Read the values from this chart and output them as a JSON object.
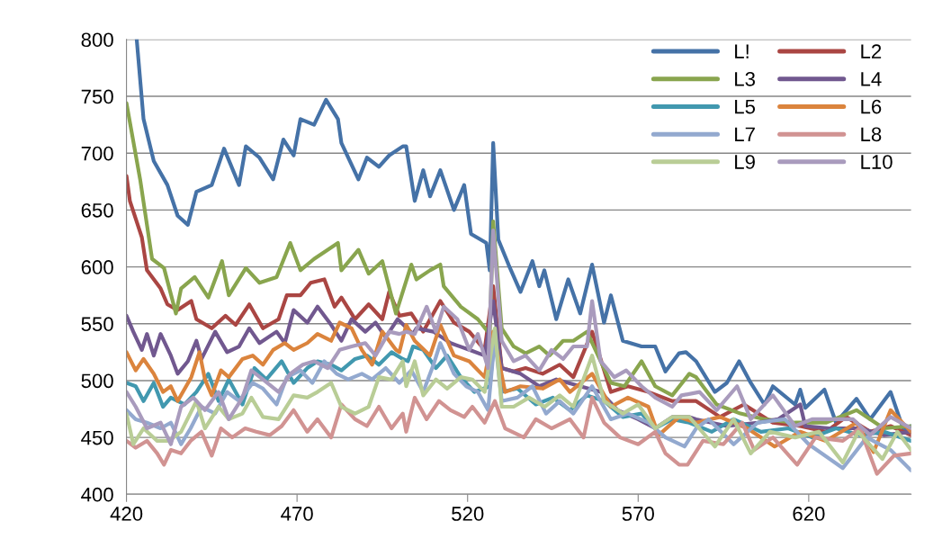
{
  "chart_data": {
    "type": "line",
    "xlim": [
      420,
      650
    ],
    "xticks": [
      420,
      470,
      520,
      570,
      620
    ],
    "ylim": [
      400,
      800
    ],
    "yticks": [
      400,
      450,
      500,
      550,
      600,
      650,
      700,
      750,
      800
    ],
    "grid": "y",
    "legend": "top right",
    "marker": "none",
    "line_style": "solid",
    "series": [
      {
        "name": "L!",
        "color": "#4572a7",
        "x": [
          423,
          425,
          428,
          432,
          435,
          438,
          440.5,
          445,
          448.6,
          453,
          455,
          459,
          463,
          466,
          469,
          471,
          475,
          478.5,
          482,
          483,
          488,
          490.5,
          494,
          497,
          501,
          502,
          504.5,
          507,
          509,
          512,
          516,
          519,
          521,
          525.5,
          526.5,
          527.5,
          529,
          532,
          535.5,
          539,
          541,
          542.5,
          546,
          549.5,
          553,
          556.5,
          560,
          562,
          565.5,
          571,
          575,
          578,
          582,
          584,
          587,
          592.5,
          596,
          599.6,
          603,
          607,
          609.5,
          616,
          617.5,
          619,
          624.6,
          628,
          634,
          638,
          644,
          648,
          650
        ],
        "values": [
          800,
          730,
          693,
          672,
          645,
          637,
          666,
          672,
          704,
          672,
          706,
          696,
          677,
          712,
          698,
          730,
          725,
          747,
          730,
          709,
          677,
          696,
          688,
          698,
          706,
          706,
          658,
          685,
          662,
          685,
          650,
          672,
          629,
          621,
          597,
          709,
          624,
          602,
          578,
          605,
          583,
          597,
          554,
          589,
          559,
          602,
          551,
          575,
          535,
          530,
          530,
          508,
          524,
          525,
          517,
          490,
          498,
          517,
          498,
          479,
          495,
          479,
          492,
          476,
          492,
          463,
          484,
          466,
          490,
          455,
          460
        ]
      },
      {
        "name": "L2",
        "color": "#aa4643",
        "x": [
          420,
          421,
          424.5,
          426,
          430,
          432,
          435,
          439,
          440.5,
          445,
          449,
          452,
          456,
          460,
          464.6,
          467,
          471,
          474,
          478,
          481,
          483,
          487,
          491,
          495,
          497,
          500,
          503.5,
          507,
          512,
          516,
          520.5,
          525,
          527.5,
          530,
          533.5,
          537,
          542,
          547,
          551,
          556.5,
          562,
          567,
          573,
          580,
          587,
          594,
          601,
          609.5,
          617.5,
          625,
          631,
          638,
          644,
          650
        ],
        "values": [
          680,
          658,
          626,
          597,
          581,
          567,
          562,
          570,
          554,
          546,
          557,
          549,
          567,
          546,
          554,
          575,
          575,
          586,
          589,
          565,
          573,
          554,
          567,
          554,
          578,
          557,
          559,
          543,
          570,
          551,
          543,
          527,
          583,
          511,
          508,
          511,
          506,
          514,
          503,
          543,
          490,
          495,
          490,
          482,
          482,
          468,
          479,
          463,
          460,
          455,
          468,
          455,
          460,
          452
        ]
      },
      {
        "name": "L3",
        "color": "#89a54e",
        "x": [
          420,
          424,
          427.5,
          431,
          434.5,
          436,
          440,
          444,
          448,
          450,
          455,
          459,
          464,
          468,
          471,
          475,
          482,
          483,
          488,
          491,
          495,
          499,
          503.5,
          505,
          509,
          512,
          513,
          518,
          523,
          526.5,
          527.5,
          530,
          533.5,
          537,
          541,
          544,
          548,
          551,
          555,
          559,
          562,
          566,
          571,
          575,
          580,
          585,
          587,
          593,
          600,
          607,
          616,
          625,
          634,
          642,
          650
        ],
        "values": [
          744,
          677,
          607,
          599,
          559,
          581,
          591,
          573,
          605,
          575,
          599,
          586,
          591,
          621,
          597,
          607,
          621,
          597,
          615,
          594,
          605,
          559,
          602,
          589,
          597,
          602,
          583,
          565,
          554,
          541,
          640,
          546,
          530,
          524,
          530,
          522,
          535,
          535,
          543,
          517,
          498,
          495,
          517,
          495,
          487,
          506,
          503,
          479,
          471,
          466,
          463,
          463,
          474,
          458,
          460
        ]
      },
      {
        "name": "L4",
        "color": "#71588f",
        "x": [
          420,
          422,
          424.5,
          426,
          428,
          430,
          433,
          435,
          438,
          440.5,
          442,
          446,
          449.5,
          453,
          456,
          459,
          464,
          466.4,
          469,
          473,
          476,
          480,
          483,
          486,
          490,
          493,
          496,
          499.5,
          504,
          505,
          510,
          515,
          520.5,
          525,
          527.5,
          530,
          535.5,
          541,
          546,
          553,
          559,
          564,
          570,
          575,
          580,
          585,
          587,
          596,
          605,
          611,
          617.5,
          619,
          626,
          635,
          642,
          650
        ],
        "values": [
          557,
          543,
          527,
          541,
          522,
          541,
          522,
          506,
          517,
          535,
          519,
          543,
          525,
          530,
          546,
          533,
          543,
          533,
          562,
          551,
          565,
          549,
          535,
          554,
          543,
          551,
          538,
          554,
          541,
          546,
          543,
          533,
          527,
          522,
          570,
          511,
          506,
          495,
          501,
          495,
          490,
          474,
          466,
          458,
          468,
          468,
          466,
          460,
          463,
          466,
          479,
          460,
          458,
          458,
          452,
          455
        ]
      },
      {
        "name": "L5",
        "color": "#4198af",
        "x": [
          420,
          422.7,
          425,
          428,
          430.7,
          433,
          437,
          440.5,
          444,
          447,
          450,
          454,
          457.5,
          461,
          465.5,
          469,
          473,
          476,
          480,
          483,
          487,
          490.5,
          494,
          497.7,
          501,
          502.5,
          504,
          507,
          510.7,
          514,
          518,
          522,
          526.5,
          528,
          530,
          534.6,
          540,
          545,
          550,
          555,
          560,
          565.5,
          571,
          575,
          580,
          585,
          591.6,
          598,
          606,
          614,
          621,
          628,
          635,
          642,
          650
        ],
        "values": [
          498,
          495,
          482,
          498,
          477,
          485,
          479,
          490,
          506,
          482,
          501,
          479,
          511,
          501,
          517,
          498,
          511,
          517,
          514,
          509,
          519,
          522,
          514,
          525,
          519,
          517,
          530,
          527,
          511,
          522,
          503,
          490,
          495,
          543,
          490,
          493,
          479,
          485,
          474,
          487,
          482,
          468,
          471,
          458,
          466,
          463,
          455,
          466,
          455,
          458,
          450,
          458,
          452,
          455,
          447
        ]
      },
      {
        "name": "L6",
        "color": "#db843d",
        "x": [
          420,
          422.7,
          425,
          428,
          430.7,
          433,
          435,
          439,
          441.4,
          443,
          445,
          447.7,
          450,
          454,
          457,
          460,
          463,
          466.4,
          469,
          473,
          476,
          480,
          482.5,
          486,
          489,
          492,
          495,
          499,
          500,
          502,
          504.5,
          509,
          512,
          516,
          520.5,
          525,
          527.5,
          531,
          535.5,
          542,
          547,
          550,
          556.5,
          562,
          567,
          573,
          576,
          582,
          587,
          594,
          602,
          610,
          617.5,
          625,
          634,
          639,
          644,
          650
        ],
        "values": [
          525,
          509,
          519,
          506,
          490,
          495,
          482,
          503,
          525,
          501,
          487,
          509,
          503,
          519,
          522,
          514,
          527,
          533,
          527,
          533,
          541,
          535,
          551,
          546,
          527,
          514,
          543,
          527,
          525,
          549,
          535,
          522,
          549,
          522,
          517,
          503,
          543,
          490,
          495,
          493,
          501,
          490,
          506,
          477,
          485,
          477,
          452,
          468,
          463,
          468,
          458,
          442,
          455,
          447,
          463,
          437,
          474,
          455
        ]
      },
      {
        "name": "L7",
        "color": "#93a9cf",
        "x": [
          420,
          422.7,
          426,
          430,
          433,
          436,
          438.8,
          442,
          446,
          449.5,
          453,
          457,
          460,
          464,
          467,
          471,
          474.5,
          478,
          481.6,
          485,
          489,
          492,
          496,
          500,
          503.5,
          507,
          510,
          512,
          516,
          519.6,
          523,
          526,
          528,
          530,
          534.6,
          539,
          543,
          547,
          551,
          556.5,
          562,
          567,
          573,
          578,
          583.6,
          587,
          590.7,
          598,
          605,
          613,
          620,
          630,
          637,
          644,
          650
        ],
        "values": [
          474,
          466,
          463,
          458,
          463,
          444,
          458,
          477,
          471,
          490,
          482,
          498,
          493,
          479,
          503,
          509,
          498,
          517,
          506,
          501,
          506,
          501,
          511,
          498,
          509,
          490,
          514,
          533,
          506,
          495,
          490,
          474,
          538,
          482,
          485,
          495,
          471,
          482,
          471,
          495,
          466,
          471,
          463,
          450,
          442,
          458,
          466,
          444,
          463,
          466,
          444,
          423,
          450,
          439,
          421
        ]
      },
      {
        "name": "L8",
        "color": "#d19392",
        "x": [
          420,
          422.7,
          426,
          429,
          431,
          433,
          436,
          438.8,
          442,
          445,
          447.7,
          451,
          454.8,
          458,
          462,
          465.5,
          469,
          473,
          476,
          480,
          483,
          487,
          490.5,
          494,
          497.7,
          501,
          502,
          504.5,
          508,
          511.6,
          515,
          519,
          521.4,
          525,
          528,
          531,
          536.5,
          540,
          544.6,
          550,
          554,
          556.5,
          560,
          564.7,
          570,
          575,
          578,
          582,
          584.5,
          589,
          595,
          600.5,
          604,
          609.5,
          616.6,
          622,
          630,
          635,
          640,
          645,
          650
        ],
        "values": [
          447,
          441,
          447,
          436,
          426,
          439,
          436,
          447,
          455,
          434,
          458,
          450,
          458,
          455,
          452,
          460,
          474,
          455,
          466,
          450,
          479,
          466,
          460,
          477,
          458,
          471,
          455,
          485,
          466,
          482,
          474,
          468,
          477,
          463,
          482,
          458,
          450,
          466,
          458,
          466,
          450,
          485,
          463,
          450,
          444,
          455,
          436,
          426,
          426,
          447,
          444,
          463,
          439,
          450,
          426,
          450,
          447,
          458,
          418,
          434,
          436
        ]
      },
      {
        "name": "L9",
        "color": "#b9cd96",
        "x": [
          420,
          422,
          425,
          429,
          432.5,
          436,
          440.5,
          443,
          447,
          450,
          454,
          456.6,
          460,
          464.6,
          469,
          473,
          476,
          480,
          483,
          487,
          491,
          494,
          497.7,
          501,
          502,
          504.5,
          507,
          510.7,
          514,
          518,
          521.4,
          525,
          528,
          530,
          533.5,
          538,
          542.6,
          547,
          551,
          556.5,
          560,
          565.5,
          570,
          575,
          580,
          585,
          592.5,
          598,
          603,
          608.6,
          616,
          623,
          630,
          634.5,
          641.6,
          646,
          650
        ],
        "values": [
          471,
          444,
          458,
          447,
          447,
          455,
          482,
          458,
          477,
          466,
          471,
          485,
          468,
          466,
          487,
          485,
          490,
          498,
          477,
          471,
          477,
          503,
          501,
          517,
          495,
          517,
          487,
          501,
          493,
          503,
          501,
          490,
          546,
          477,
          477,
          485,
          477,
          487,
          477,
          522,
          482,
          471,
          479,
          458,
          468,
          468,
          442,
          466,
          436,
          455,
          450,
          455,
          428,
          455,
          431,
          455,
          439
        ]
      },
      {
        "name": "L10",
        "color": "#a99bbd",
        "x": [
          420,
          422.7,
          426,
          430,
          433,
          436,
          439.6,
          443,
          447,
          450,
          454,
          456.6,
          460,
          464.6,
          468,
          471.7,
          475,
          479,
          482.5,
          486,
          490,
          493,
          497,
          500,
          502,
          504.5,
          508,
          510.7,
          513,
          517,
          520.5,
          523,
          526,
          527.5,
          530,
          533.5,
          537,
          541,
          544.6,
          548,
          551,
          555,
          556.5,
          559,
          563,
          566.5,
          571,
          575,
          580,
          582.7,
          588,
          593,
          599,
          603,
          609.5,
          616,
          621,
          626,
          633,
          638,
          644,
          650
        ],
        "values": [
          490,
          477,
          458,
          463,
          444,
          477,
          485,
          474,
          490,
          466,
          485,
          509,
          501,
          490,
          506,
          514,
          517,
          511,
          527,
          530,
          533,
          522,
          543,
          541,
          543,
          541,
          565,
          543,
          565,
          554,
          527,
          541,
          511,
          632,
          535,
          517,
          522,
          509,
          527,
          519,
          530,
          530,
          570,
          517,
          503,
          509,
          495,
          485,
          477,
          487,
          490,
          474,
          495,
          466,
          487,
          460,
          466,
          466,
          466,
          452,
          468,
          458
        ]
      }
    ]
  }
}
